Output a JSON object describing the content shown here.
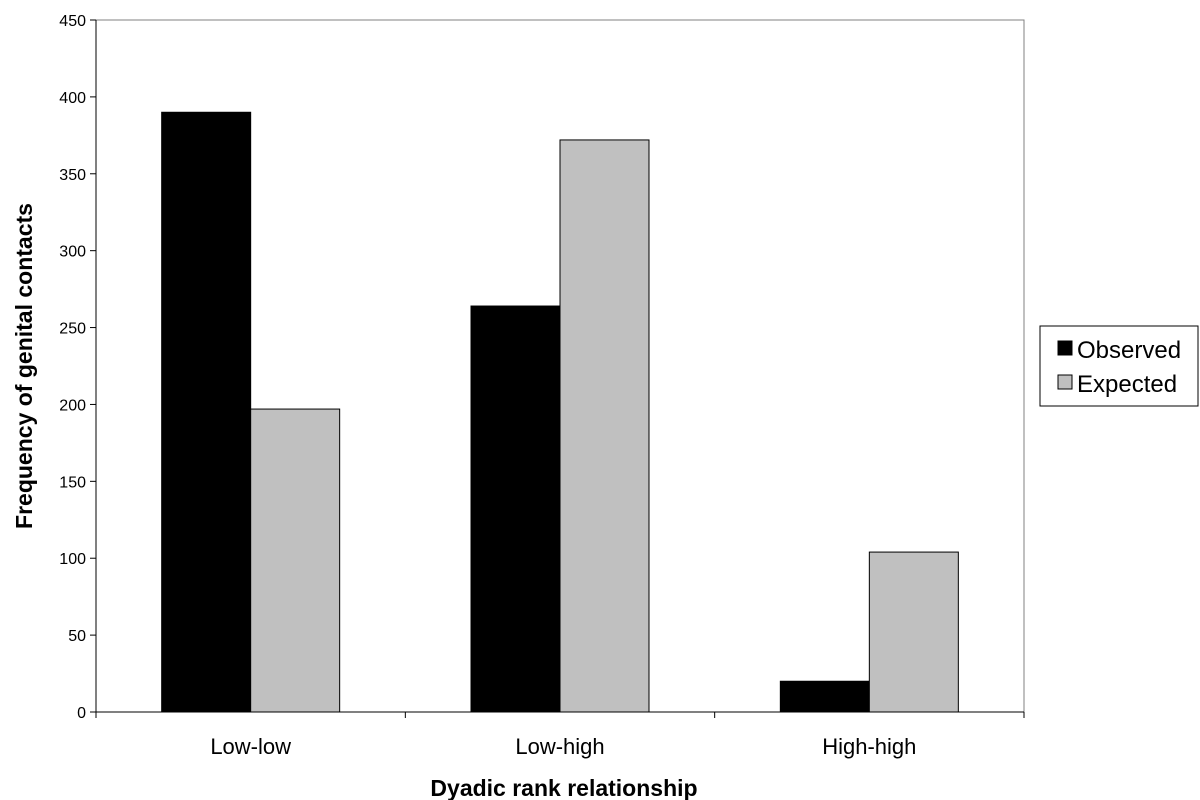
{
  "chart_data": {
    "type": "bar",
    "title": "",
    "xlabel": "Dyadic rank relationship",
    "ylabel": "Frequency of genital contacts",
    "categories": [
      "Low-low",
      "Low-high",
      "High-high"
    ],
    "series": [
      {
        "name": "Observed",
        "values": [
          390,
          264,
          20
        ],
        "color": "#000000"
      },
      {
        "name": "Expected",
        "values": [
          197,
          372,
          104
        ],
        "color": "#c0c0c0"
      }
    ],
    "ylim": [
      0,
      450
    ],
    "yticks": [
      0,
      50,
      100,
      150,
      200,
      250,
      300,
      350,
      400,
      450
    ],
    "grid": false,
    "legend_position": "right"
  }
}
